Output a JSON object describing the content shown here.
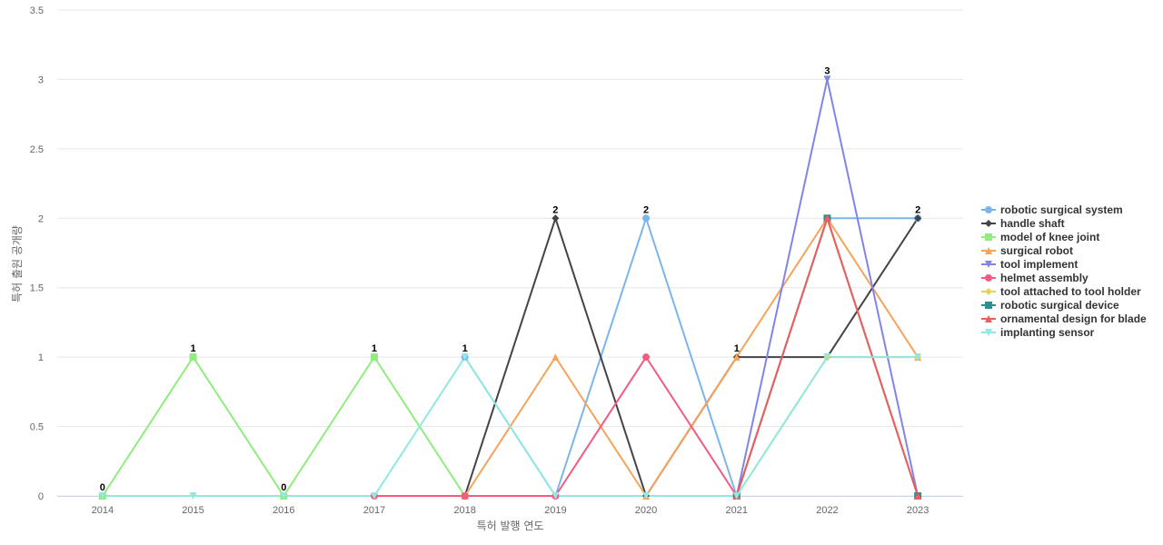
{
  "chart_data": {
    "type": "line",
    "title": "",
    "xlabel": "특허 발행 연도",
    "ylabel": "특허 출원 공개량",
    "x": [
      "2014",
      "2015",
      "2016",
      "2017",
      "2018",
      "2019",
      "2020",
      "2021",
      "2022",
      "2023"
    ],
    "ylim": [
      0,
      3.5
    ],
    "yticks": [
      "0",
      "0.5",
      "1",
      "1.5",
      "2",
      "2.5",
      "3",
      "3.5"
    ],
    "grid": true,
    "legend_position": "right",
    "series": [
      {
        "name": "robotic surgical system",
        "color": "#7cb5ec",
        "marker": "circle",
        "values": [
          null,
          null,
          null,
          null,
          1,
          0,
          2,
          0,
          2,
          2
        ]
      },
      {
        "name": "handle shaft",
        "color": "#434348",
        "marker": "diamond",
        "values": [
          null,
          null,
          null,
          null,
          0,
          2,
          0,
          1,
          1,
          2
        ]
      },
      {
        "name": "model of knee joint",
        "color": "#90ed7d",
        "marker": "square",
        "values": [
          0,
          1,
          0,
          1,
          0,
          null,
          null,
          null,
          null,
          null
        ]
      },
      {
        "name": "surgical robot",
        "color": "#f7a35c",
        "marker": "triangle",
        "values": [
          null,
          null,
          null,
          null,
          0,
          1,
          0,
          1,
          2,
          1
        ]
      },
      {
        "name": "tool implement",
        "color": "#8085e9",
        "marker": "triangle-down",
        "values": [
          null,
          null,
          null,
          null,
          null,
          null,
          null,
          0,
          3,
          0
        ]
      },
      {
        "name": "helmet assembly",
        "color": "#f15c80",
        "marker": "circle",
        "values": [
          null,
          null,
          null,
          0,
          0,
          0,
          1,
          0,
          null,
          null
        ]
      },
      {
        "name": "tool attached to tool holder",
        "color": "#e4d354",
        "marker": "diamond",
        "values": [
          null,
          null,
          null,
          null,
          null,
          null,
          null,
          0,
          1,
          1
        ]
      },
      {
        "name": "robotic surgical device",
        "color": "#2b908f",
        "marker": "square",
        "values": [
          null,
          null,
          null,
          null,
          null,
          null,
          null,
          0,
          2,
          0
        ]
      },
      {
        "name": "ornamental design for blade",
        "color": "#f45b5b",
        "marker": "triangle",
        "values": [
          null,
          null,
          null,
          null,
          null,
          null,
          null,
          0,
          2,
          0
        ]
      },
      {
        "name": "implanting sensor",
        "color": "#91e8e1",
        "marker": "triangle-down",
        "values": [
          0,
          0,
          0,
          0,
          1,
          0,
          0,
          0,
          1,
          1
        ]
      }
    ],
    "data_labels": [
      "0",
      "1",
      "0",
      "1",
      "1",
      "2",
      "2",
      "1",
      "3",
      "2"
    ],
    "data_labels_2": [
      null,
      "0",
      null,
      "0",
      "0",
      "1",
      "1",
      null,
      "2",
      "2"
    ],
    "data_labels_3": [
      null,
      null,
      null,
      null,
      null,
      null,
      null,
      null,
      "2",
      "1"
    ],
    "data_labels_4": [
      null,
      null,
      null,
      null,
      null,
      null,
      null,
      null,
      "1",
      "1"
    ],
    "data_labels_5": [
      null,
      null,
      null,
      null,
      null,
      null,
      null,
      null,
      "1",
      "0"
    ]
  }
}
